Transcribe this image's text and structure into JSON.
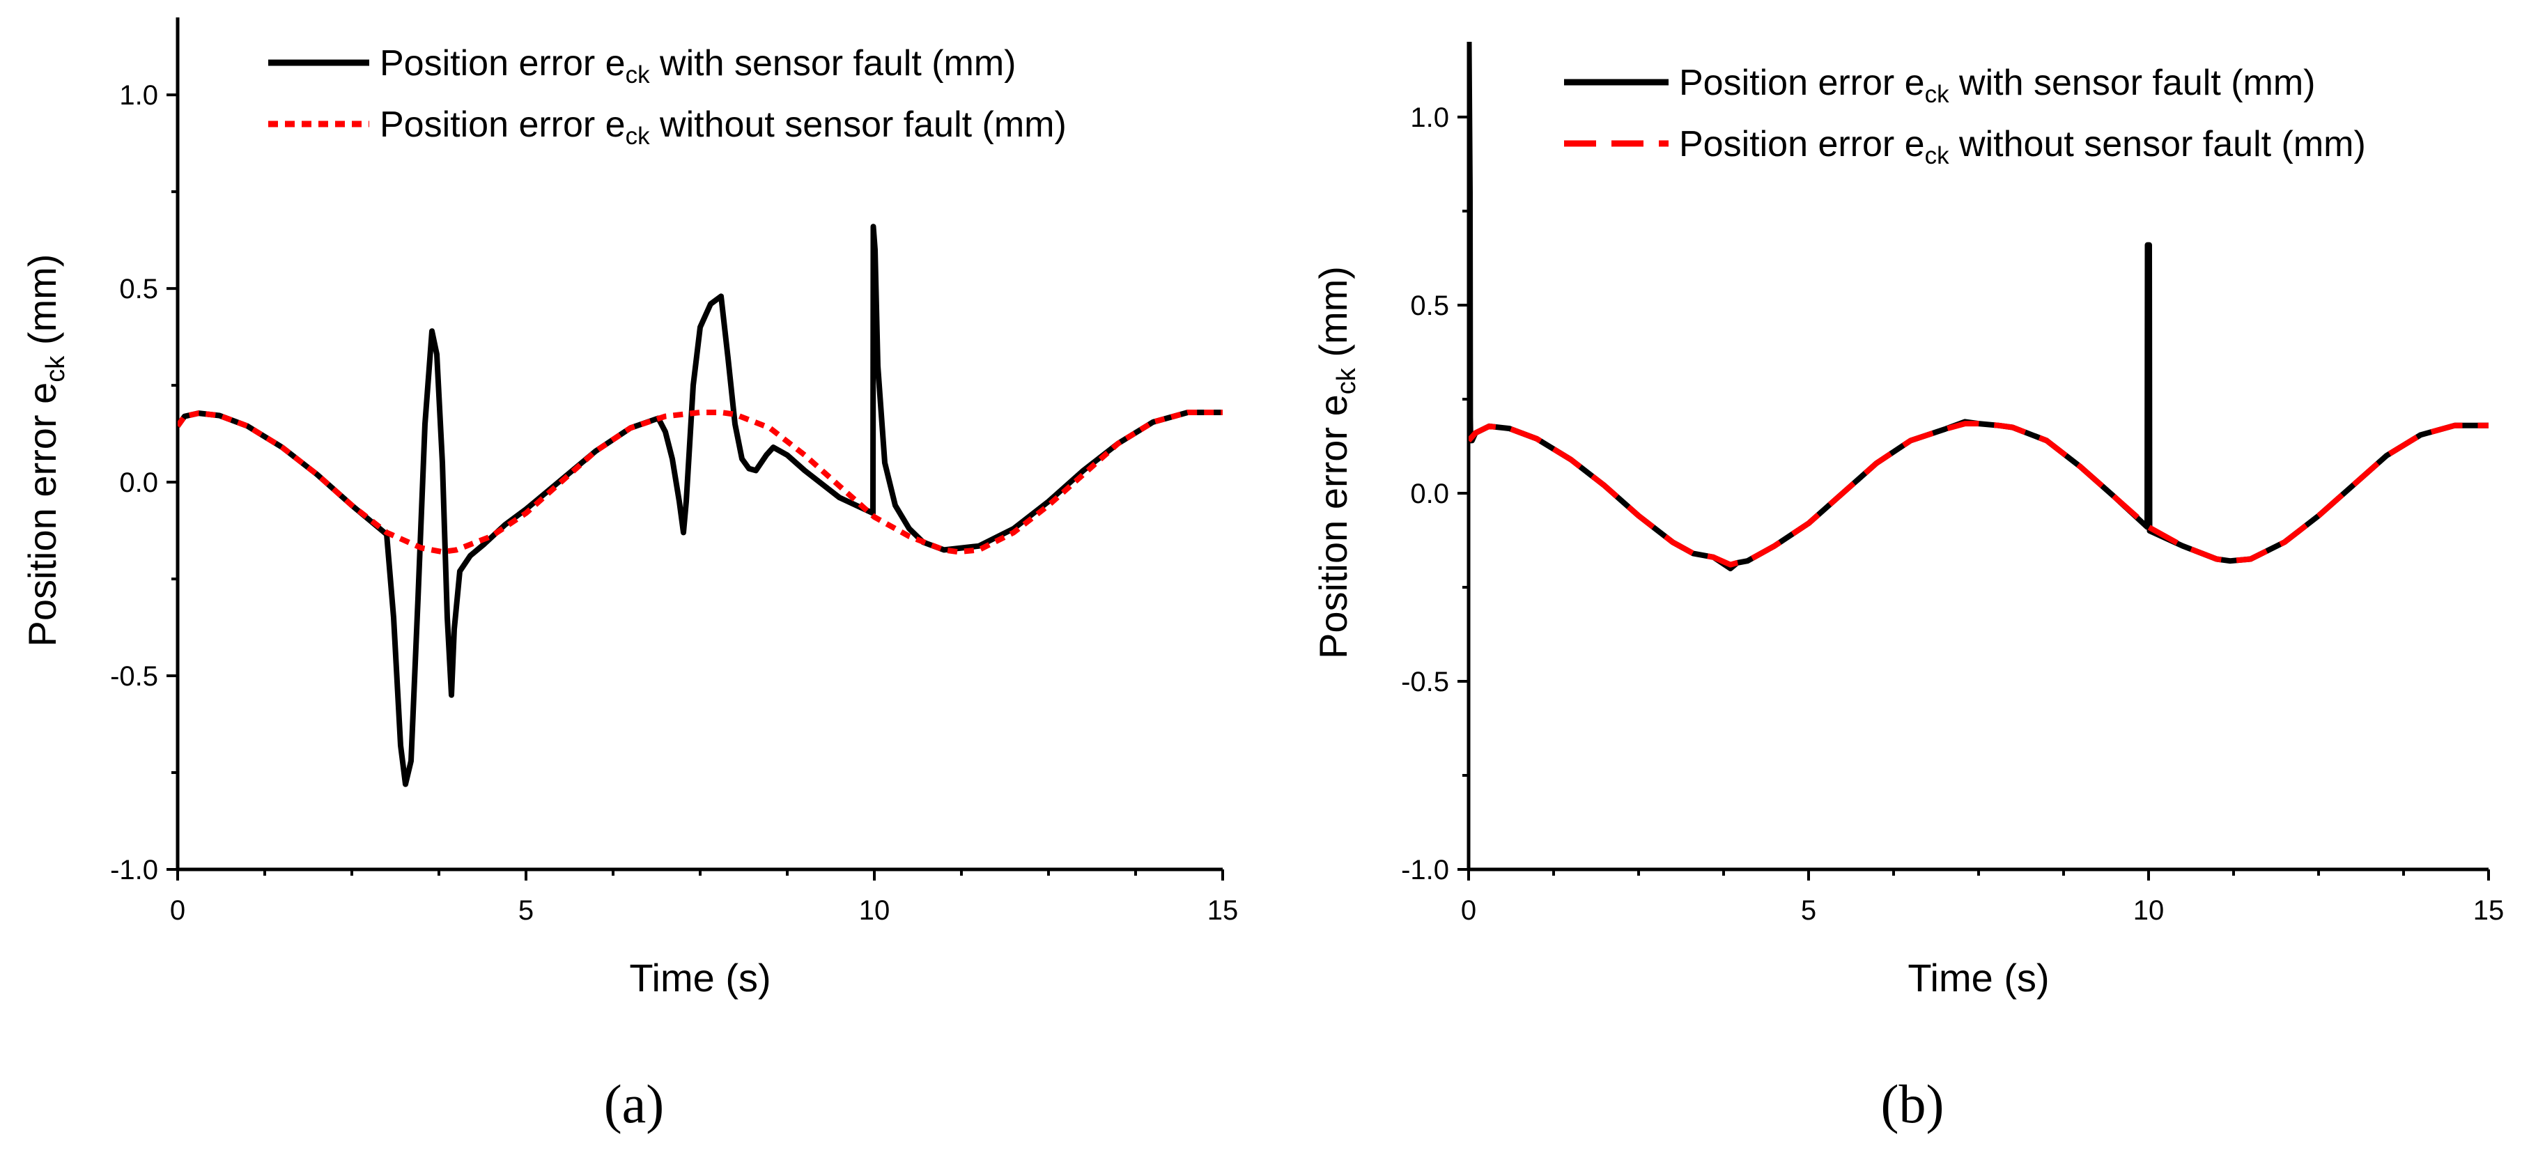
{
  "chart_data": [
    {
      "panel": "(a)",
      "panel_letter": "a",
      "type": "line",
      "title": "",
      "xlabel": "Time (s)",
      "ylabel": "Position error e",
      "ylabel_sub": "ck",
      "ylabel_suffix": " (mm)",
      "xlim": [
        0,
        15
      ],
      "ylim": [
        -1.0,
        1.2
      ],
      "xticks": [
        0,
        5,
        10,
        15
      ],
      "xtick_labels": [
        "0",
        "5",
        "10",
        "15"
      ],
      "yticks": [
        -1.0,
        -0.5,
        0.0,
        0.5,
        1.0
      ],
      "ytick_labels": [
        "-1.0",
        "-0.5",
        "0.0",
        "0.5",
        "1.0"
      ],
      "grid": false,
      "legend_position": "top",
      "series": [
        {
          "name": "Position error e_ck with sensor fault (mm)",
          "legend_main": "Position error e",
          "legend_sub": "ck",
          "legend_suffix": " with sensor fault (mm)",
          "color": "#000000",
          "style": "solid",
          "x": [
            0,
            0.1,
            0.3,
            0.6,
            1,
            1.5,
            2,
            2.5,
            3,
            3.1,
            3.2,
            3.27,
            3.35,
            3.45,
            3.55,
            3.65,
            3.72,
            3.8,
            3.87,
            3.93,
            3.97,
            4.05,
            4.2,
            4.4,
            4.7,
            5,
            5.5,
            6,
            6.5,
            6.9,
            7,
            7.1,
            7.2,
            7.26,
            7.3,
            7.4,
            7.5,
            7.65,
            7.8,
            7.9,
            8,
            8.1,
            8.2,
            8.3,
            8.45,
            8.55,
            8.75,
            9,
            9.5,
            9.98,
            9.985,
            10.01,
            10.05,
            10.15,
            10.3,
            10.5,
            10.7,
            11,
            11.5,
            12,
            12.5,
            13,
            13.5,
            14,
            14.5,
            15
          ],
          "y": [
            0.145,
            0.17,
            0.178,
            0.172,
            0.145,
            0.09,
            0.02,
            -0.06,
            -0.135,
            -0.35,
            -0.68,
            -0.78,
            -0.72,
            -0.3,
            0.15,
            0.39,
            0.33,
            0.05,
            -0.35,
            -0.55,
            -0.38,
            -0.23,
            -0.19,
            -0.16,
            -0.11,
            -0.07,
            0.005,
            0.08,
            0.14,
            0.165,
            0.13,
            0.06,
            -0.05,
            -0.13,
            -0.05,
            0.25,
            0.4,
            0.46,
            0.48,
            0.32,
            0.15,
            0.06,
            0.035,
            0.03,
            0.07,
            0.09,
            0.07,
            0.03,
            -0.04,
            -0.08,
            0.66,
            0.6,
            0.3,
            0.05,
            -0.06,
            -0.12,
            -0.155,
            -0.175,
            -0.165,
            -0.12,
            -0.05,
            0.03,
            0.1,
            0.155,
            0.18,
            0.18
          ]
        },
        {
          "name": "Position error e_ck without sensor fault (mm)",
          "legend_main": "Position error e",
          "legend_sub": "ck",
          "legend_suffix": " without sensor fault (mm)",
          "color": "#ff0000",
          "style": "dotted",
          "x": [
            0,
            0.1,
            0.3,
            0.6,
            1,
            1.5,
            2,
            2.5,
            3,
            3.5,
            3.8,
            4,
            4.5,
            5,
            5.5,
            6,
            6.5,
            7,
            7.5,
            7.8,
            8,
            8.5,
            9,
            9.5,
            10,
            10.5,
            11,
            11.2,
            11.5,
            12,
            12.5,
            13,
            13.5,
            14,
            14.5,
            15
          ],
          "y": [
            0.145,
            0.17,
            0.178,
            0.172,
            0.145,
            0.09,
            0.02,
            -0.06,
            -0.13,
            -0.17,
            -0.18,
            -0.175,
            -0.14,
            -0.08,
            0.0,
            0.08,
            0.14,
            0.17,
            0.18,
            0.18,
            0.175,
            0.14,
            0.07,
            -0.01,
            -0.09,
            -0.14,
            -0.175,
            -0.18,
            -0.175,
            -0.13,
            -0.06,
            0.02,
            0.1,
            0.155,
            0.18,
            0.18
          ]
        }
      ]
    },
    {
      "panel": "(b)",
      "panel_letter": "b",
      "type": "line",
      "title": "",
      "xlabel": "Time (s)",
      "ylabel": "Position error e",
      "ylabel_sub": "ck",
      "ylabel_suffix": " (mm)",
      "xlim": [
        0,
        15
      ],
      "ylim": [
        -1.0,
        1.2
      ],
      "xticks": [
        0,
        5,
        10,
        15
      ],
      "xtick_labels": [
        "0",
        "5",
        "10",
        "15"
      ],
      "yticks": [
        -1.0,
        -0.5,
        0.0,
        0.5,
        1.0
      ],
      "ytick_labels": [
        "-1.0",
        "-0.5",
        "0.0",
        "0.5",
        "1.0"
      ],
      "grid": false,
      "legend_position": "top",
      "series": [
        {
          "name": "Position error e_ck with sensor fault (mm)",
          "legend_main": "Position error e",
          "legend_sub": "ck",
          "legend_suffix": " with sensor fault (mm)",
          "color": "#000000",
          "style": "solid",
          "x": [
            0,
            0.005,
            0.02,
            0.025,
            0.03,
            0.05,
            0.1,
            0.3,
            0.6,
            1,
            1.5,
            2,
            2.5,
            3,
            3.3,
            3.6,
            3.85,
            3.95,
            4.1,
            4.5,
            5,
            5.5,
            6,
            6.5,
            7,
            7.3,
            7.5,
            7.8,
            8,
            8.5,
            9,
            9.5,
            9.98,
            9.985,
            10.01,
            10.015,
            10.5,
            11,
            11.2,
            11.5,
            12,
            12.5,
            13,
            13.5,
            14,
            14.5,
            15
          ],
          "y": [
            1.2,
            1.2,
            0.8,
            0.2,
            0.14,
            0.14,
            0.16,
            0.178,
            0.172,
            0.145,
            0.09,
            0.02,
            -0.06,
            -0.13,
            -0.16,
            -0.17,
            -0.2,
            -0.185,
            -0.18,
            -0.14,
            -0.08,
            0.0,
            0.08,
            0.14,
            0.17,
            0.19,
            0.185,
            0.18,
            0.175,
            0.14,
            0.07,
            -0.01,
            -0.09,
            0.66,
            0.66,
            -0.1,
            -0.14,
            -0.175,
            -0.18,
            -0.175,
            -0.13,
            -0.06,
            0.02,
            0.1,
            0.155,
            0.18,
            0.18
          ]
        },
        {
          "name": "Position error e_ck without sensor fault (mm)",
          "legend_main": "Position error e",
          "legend_sub": "ck",
          "legend_suffix": " without sensor fault (mm)",
          "color": "#ff0000",
          "style": "dashed",
          "x": [
            0,
            0.1,
            0.3,
            0.6,
            1,
            1.5,
            2,
            2.5,
            3,
            3.3,
            3.6,
            3.85,
            3.95,
            4.1,
            4.5,
            5,
            5.5,
            6,
            6.5,
            7,
            7.3,
            7.5,
            7.8,
            8,
            8.5,
            9,
            9.5,
            10,
            10.5,
            11,
            11.2,
            11.5,
            12,
            12.5,
            13,
            13.5,
            14,
            14.5,
            15
          ],
          "y": [
            0.14,
            0.16,
            0.178,
            0.172,
            0.145,
            0.09,
            0.02,
            -0.06,
            -0.13,
            -0.16,
            -0.17,
            -0.19,
            -0.185,
            -0.18,
            -0.14,
            -0.08,
            0.0,
            0.08,
            0.14,
            0.17,
            0.185,
            0.185,
            0.18,
            0.175,
            0.14,
            0.07,
            -0.01,
            -0.09,
            -0.14,
            -0.175,
            -0.18,
            -0.175,
            -0.13,
            -0.06,
            0.02,
            0.1,
            0.155,
            0.18,
            0.18
          ]
        }
      ]
    }
  ]
}
